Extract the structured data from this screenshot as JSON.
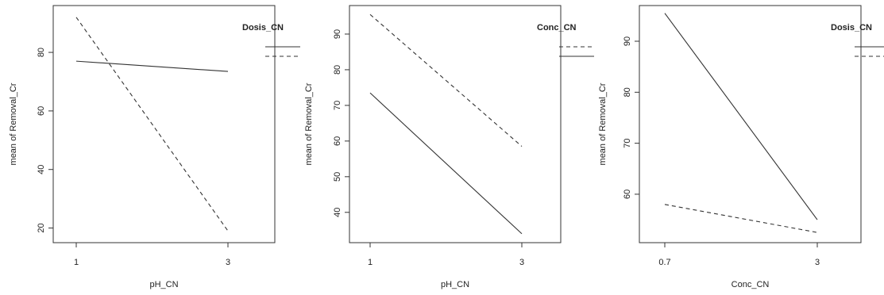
{
  "chart_data": [
    {
      "type": "line",
      "xlabel": "pH_CN",
      "ylabel": "mean of Removal_Cr",
      "categories": [
        "1",
        "3"
      ],
      "ylim": [
        15,
        96
      ],
      "yticks": [
        20,
        40,
        60,
        80
      ],
      "legend_title": "Dosis_CN",
      "legend_placement": "right",
      "grid": false,
      "series": [
        {
          "style": "solid",
          "values": [
            77,
            73.5
          ]
        },
        {
          "style": "dashed",
          "values": [
            92,
            19
          ]
        }
      ]
    },
    {
      "type": "line",
      "xlabel": "pH_CN",
      "ylabel": "mean of Removal_Cr",
      "categories": [
        "1",
        "3"
      ],
      "ylim": [
        31.5,
        98
      ],
      "yticks": [
        40,
        50,
        60,
        70,
        80,
        90
      ],
      "legend_title": "Conc_CN",
      "legend_placement": "right",
      "grid": false,
      "series": [
        {
          "style": "dashed",
          "values": [
            95.5,
            58.5
          ]
        },
        {
          "style": "solid",
          "values": [
            73.5,
            34
          ]
        }
      ]
    },
    {
      "type": "line",
      "xlabel": "Conc_CN",
      "ylabel": "mean of Removal_Cr",
      "categories": [
        "0.7",
        "3"
      ],
      "ylim": [
        50.5,
        97
      ],
      "yticks": [
        60,
        70,
        80,
        90
      ],
      "legend_title": "Dosis_CN",
      "legend_placement": "right",
      "grid": false,
      "series": [
        {
          "style": "solid",
          "values": [
            95.5,
            55
          ]
        },
        {
          "style": "dashed",
          "values": [
            58,
            52.5
          ]
        }
      ]
    }
  ]
}
